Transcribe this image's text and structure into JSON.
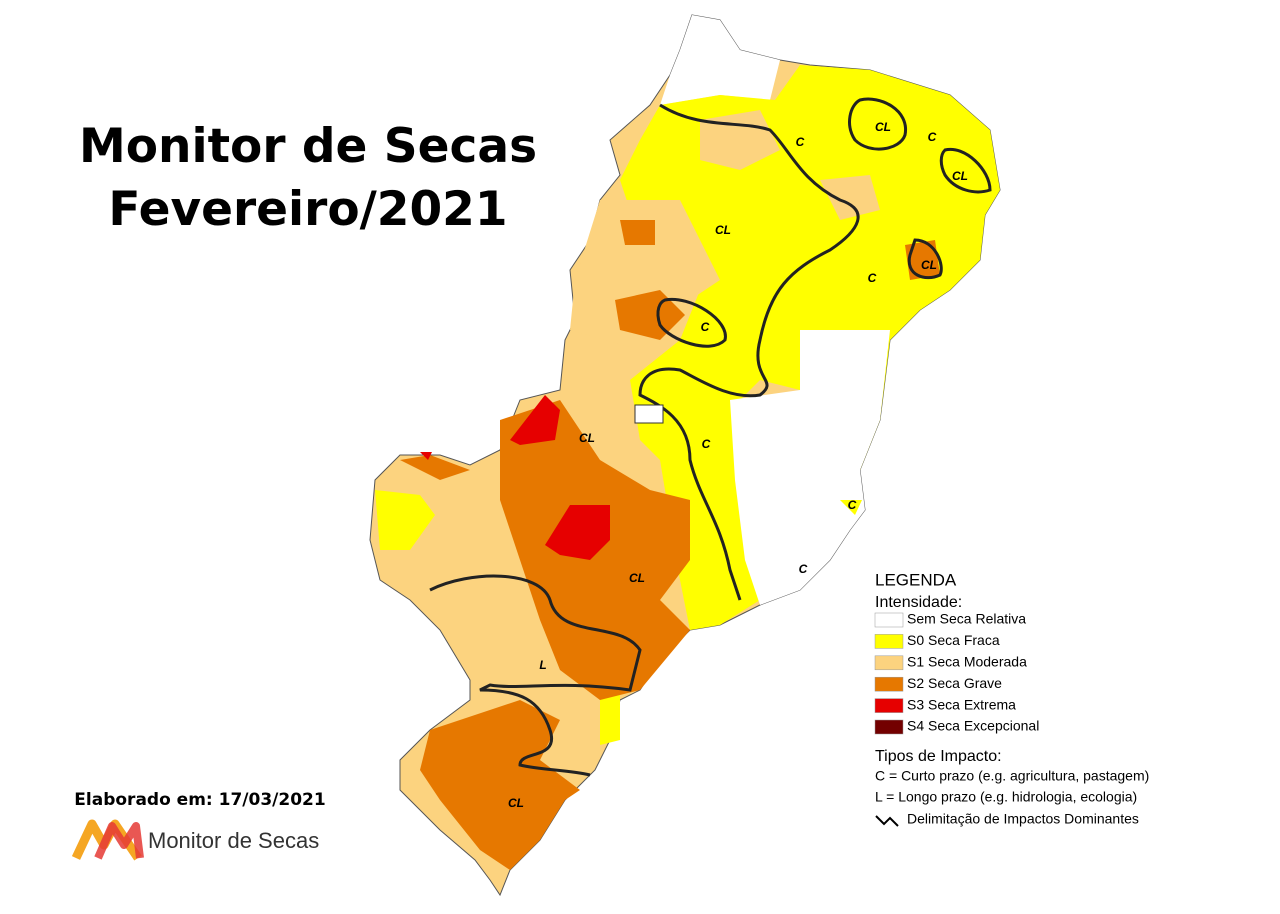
{
  "title": [
    "Monitor de Secas",
    "Fevereiro/2021"
  ],
  "elaborated": "Elaborado em: 17/03/2021",
  "logo_text": "Monitor de Secas",
  "legend": {
    "title": "LEGENDA",
    "intensity_heading": "Intensidade:",
    "intensity": [
      {
        "label": "Sem Seca Relativa",
        "color": "#ffffff"
      },
      {
        "label": "S0 Seca Fraca",
        "color": "#ffff00"
      },
      {
        "label": "S1 Seca Moderada",
        "color": "#fcd37f"
      },
      {
        "label": "S2 Seca Grave",
        "color": "#e67800"
      },
      {
        "label": "S3 Seca Extrema",
        "color": "#e60000"
      },
      {
        "label": "S4 Seca Excepcional",
        "color": "#730000"
      }
    ],
    "impact_heading": "Tipos de Impacto:",
    "impact": [
      "C = Curto prazo (e.g. agricultura, pastagem)",
      "L = Longo prazo (e.g. hidrologia, ecologia)"
    ],
    "line_label": "Delimitação de Impactos Dominantes"
  },
  "map_labels": [
    "CL",
    "C",
    "CL",
    "C",
    "CL",
    "CL",
    "C",
    "C",
    "CL",
    "C",
    "C",
    "C",
    "CL",
    "L",
    "CL"
  ]
}
